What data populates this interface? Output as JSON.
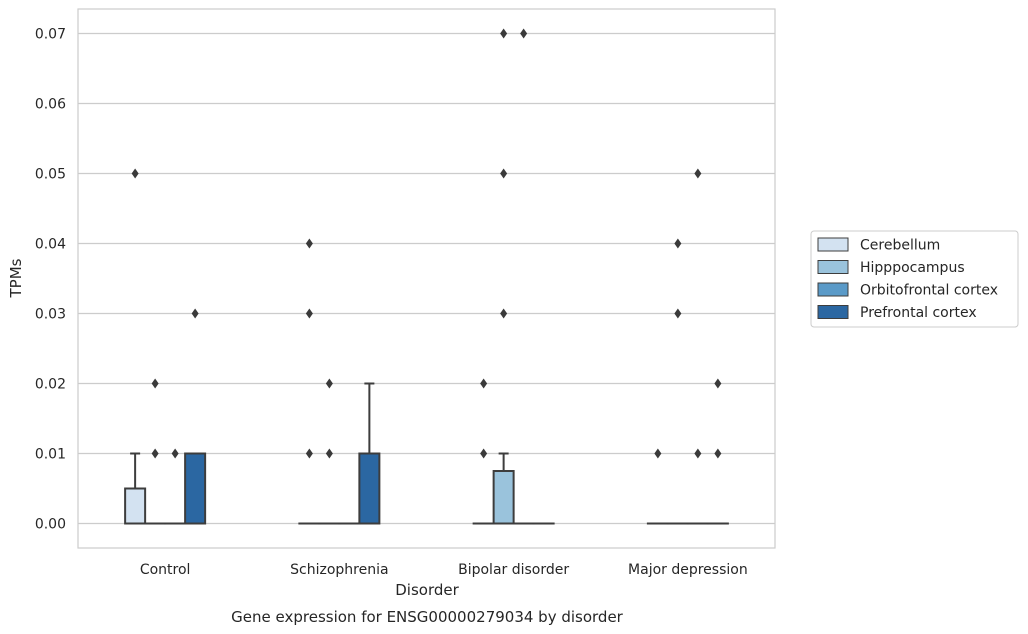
{
  "chart_data": {
    "type": "box",
    "caption": "Gene expression for ENSG00000279034 by disorder",
    "xlabel": "Disorder",
    "ylabel": "TPMs",
    "ylim": [
      -0.0035,
      0.0735
    ],
    "yticks": [
      "0.00",
      "0.01",
      "0.02",
      "0.03",
      "0.04",
      "0.05",
      "0.06",
      "0.07"
    ],
    "ytick_values": [
      0,
      0.01,
      0.02,
      0.03,
      0.04,
      0.05,
      0.06,
      0.07
    ],
    "grid": "y",
    "legend_position": "right",
    "categories": [
      "Control",
      "Schizophrenia",
      "Bipolar disorder",
      "Major depression"
    ],
    "series": [
      {
        "name": "Cerebellum",
        "color": "#d3e2f1",
        "boxes": [
          {
            "q1": 0,
            "median": 0,
            "q3": 0.005,
            "whisker_low": 0,
            "whisker_high": 0.01,
            "outliers": [
              0.05
            ]
          },
          {
            "q1": 0,
            "median": 0,
            "q3": 0,
            "whisker_low": 0,
            "whisker_high": 0,
            "outliers": [
              0.01,
              0.03,
              0.04
            ]
          },
          {
            "q1": 0,
            "median": 0,
            "q3": 0,
            "whisker_low": 0,
            "whisker_high": 0,
            "outliers": [
              0.01,
              0.02
            ]
          },
          {
            "q1": 0,
            "median": 0,
            "q3": 0,
            "whisker_low": 0,
            "whisker_high": 0,
            "outliers": [
              0.01
            ]
          }
        ]
      },
      {
        "name": "Hipppocampus",
        "color": "#9ac3dc",
        "boxes": [
          {
            "q1": 0,
            "median": 0,
            "q3": 0,
            "whisker_low": 0,
            "whisker_high": 0,
            "outliers": [
              0.01,
              0.02
            ]
          },
          {
            "q1": 0,
            "median": 0,
            "q3": 0,
            "whisker_low": 0,
            "whisker_high": 0,
            "outliers": [
              0.01,
              0.02
            ]
          },
          {
            "q1": 0,
            "median": 0,
            "q3": 0.0075,
            "whisker_low": 0,
            "whisker_high": 0.01,
            "outliers": [
              0.03,
              0.05,
              0.07
            ]
          },
          {
            "q1": 0,
            "median": 0,
            "q3": 0,
            "whisker_low": 0,
            "whisker_high": 0,
            "outliers": [
              0.03,
              0.04
            ]
          }
        ]
      },
      {
        "name": "Orbitofrontal cortex",
        "color": "#5a9ac8",
        "boxes": [
          {
            "q1": 0,
            "median": 0,
            "q3": 0,
            "whisker_low": 0,
            "whisker_high": 0,
            "outliers": [
              0.01
            ]
          },
          {
            "q1": 0,
            "median": 0,
            "q3": 0,
            "whisker_low": 0,
            "whisker_high": 0,
            "outliers": []
          },
          {
            "q1": 0,
            "median": 0,
            "q3": 0,
            "whisker_low": 0,
            "whisker_high": 0,
            "outliers": [
              0.07
            ]
          },
          {
            "q1": 0,
            "median": 0,
            "q3": 0,
            "whisker_low": 0,
            "whisker_high": 0,
            "outliers": [
              0.01,
              0.05
            ]
          }
        ]
      },
      {
        "name": "Prefrontal cortex",
        "color": "#2b67a2",
        "boxes": [
          {
            "q1": 0,
            "median": 0,
            "q3": 0.01,
            "whisker_low": 0,
            "whisker_high": 0.01,
            "outliers": [
              0.03
            ]
          },
          {
            "q1": 0,
            "median": 0,
            "q3": 0.01,
            "whisker_low": 0,
            "whisker_high": 0.02,
            "outliers": []
          },
          {
            "q1": 0,
            "median": 0,
            "q3": 0,
            "whisker_low": 0,
            "whisker_high": 0,
            "outliers": []
          },
          {
            "q1": 0,
            "median": 0,
            "q3": 0,
            "whisker_low": 0,
            "whisker_high": 0,
            "outliers": [
              0.01,
              0.02
            ]
          }
        ]
      }
    ]
  }
}
